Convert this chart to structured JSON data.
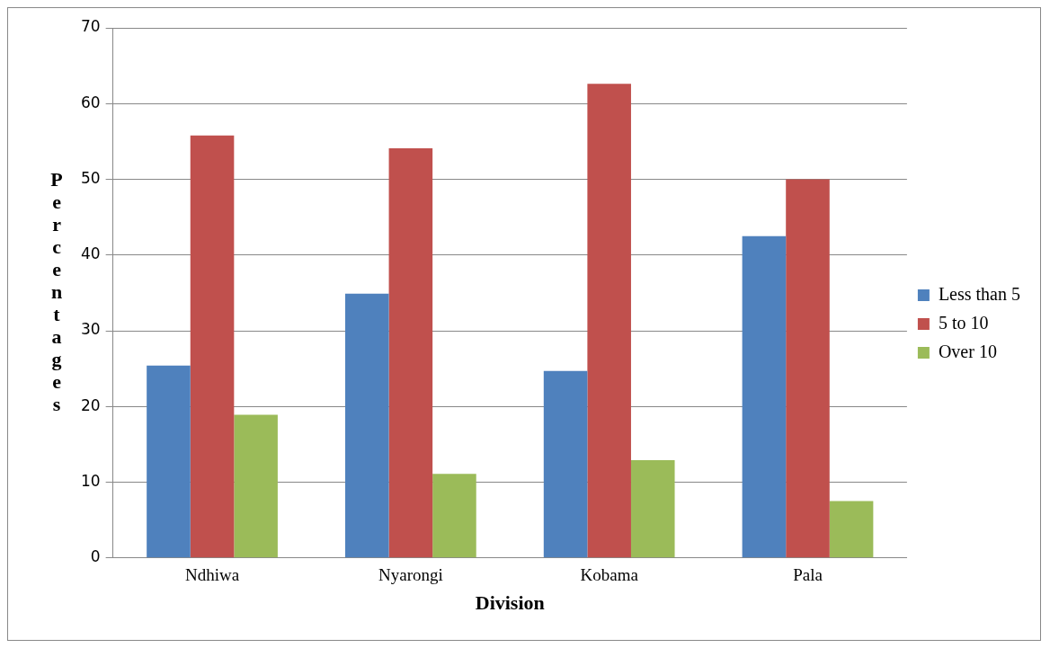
{
  "chart_data": {
    "type": "bar",
    "xlabel": "Division",
    "ylabel": "Percentages",
    "categories": [
      "Ndhiwa",
      "Nyarongi",
      "Kobama",
      "Pala"
    ],
    "series": [
      {
        "name": "Less than 5",
        "color": "#4f81bd",
        "values": [
          25.4,
          34.9,
          24.7,
          42.5
        ]
      },
      {
        "name": "5 to 10",
        "color": "#c0504d",
        "values": [
          55.8,
          54.1,
          62.6,
          50
        ]
      },
      {
        "name": "Over 10",
        "color": "#9bbb59",
        "values": [
          18.9,
          11.1,
          12.9,
          7.5
        ]
      }
    ],
    "ylim": [
      0,
      70
    ],
    "yticks": [
      0,
      10,
      20,
      30,
      40,
      50,
      60,
      70
    ],
    "grid": "y",
    "legend": "right"
  }
}
